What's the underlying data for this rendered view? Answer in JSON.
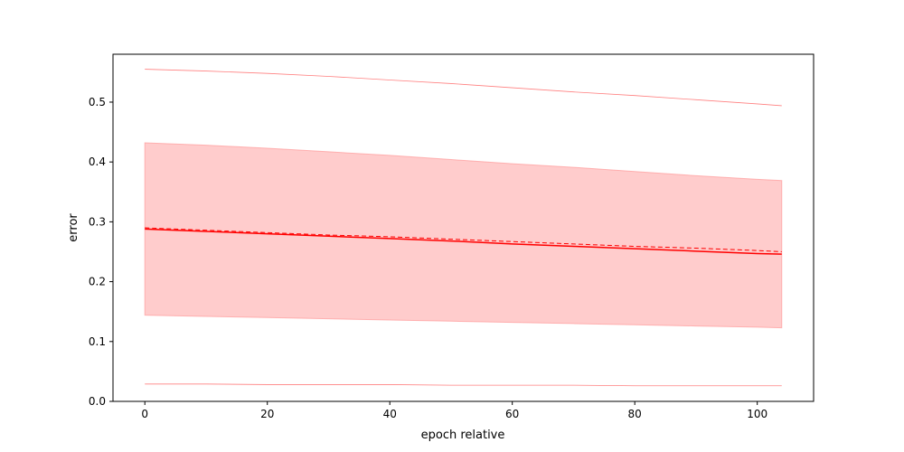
{
  "chart_data": {
    "type": "line",
    "title": "",
    "xlabel": "epoch relative",
    "ylabel": "error",
    "xlim": [
      -5.2,
      109.2
    ],
    "ylim": [
      0.0,
      0.58
    ],
    "xticks": [
      0,
      20,
      40,
      60,
      80,
      100
    ],
    "yticks": [
      0.0,
      0.1,
      0.2,
      0.3,
      0.4,
      0.5
    ],
    "xtick_labels": [
      "0",
      "20",
      "40",
      "60",
      "80",
      "100"
    ],
    "ytick_labels": [
      "0.0",
      "0.1",
      "0.2",
      "0.3",
      "0.4",
      "0.5"
    ],
    "grid": false,
    "legend": "none",
    "x": [
      0,
      10,
      20,
      30,
      40,
      50,
      60,
      70,
      80,
      90,
      100,
      104
    ],
    "series": [
      {
        "role": "mean",
        "style": "solid",
        "color": "#ff0000",
        "values": [
          0.288,
          0.284,
          0.28,
          0.276,
          0.272,
          0.268,
          0.263,
          0.259,
          0.255,
          0.251,
          0.247,
          0.246
        ]
      },
      {
        "role": "reference",
        "style": "dashed",
        "color": "#ff0000",
        "values": [
          0.29,
          0.286,
          0.282,
          0.278,
          0.275,
          0.271,
          0.267,
          0.263,
          0.259,
          0.256,
          0.252,
          0.25
        ]
      },
      {
        "role": "max",
        "style": "thin",
        "color": "#ff8080",
        "values": [
          0.555,
          0.552,
          0.548,
          0.543,
          0.537,
          0.531,
          0.524,
          0.517,
          0.511,
          0.504,
          0.497,
          0.494
        ]
      },
      {
        "role": "min",
        "style": "thin",
        "color": "#ff8080",
        "values": [
          0.029,
          0.029,
          0.028,
          0.028,
          0.028,
          0.027,
          0.027,
          0.027,
          0.026,
          0.026,
          0.026,
          0.026
        ]
      }
    ],
    "band": {
      "color": "#ff9999",
      "upper": [
        0.432,
        0.428,
        0.423,
        0.417,
        0.411,
        0.404,
        0.397,
        0.391,
        0.384,
        0.377,
        0.371,
        0.369
      ],
      "lower": [
        0.144,
        0.142,
        0.14,
        0.138,
        0.136,
        0.134,
        0.132,
        0.13,
        0.128,
        0.126,
        0.124,
        0.123
      ]
    }
  }
}
